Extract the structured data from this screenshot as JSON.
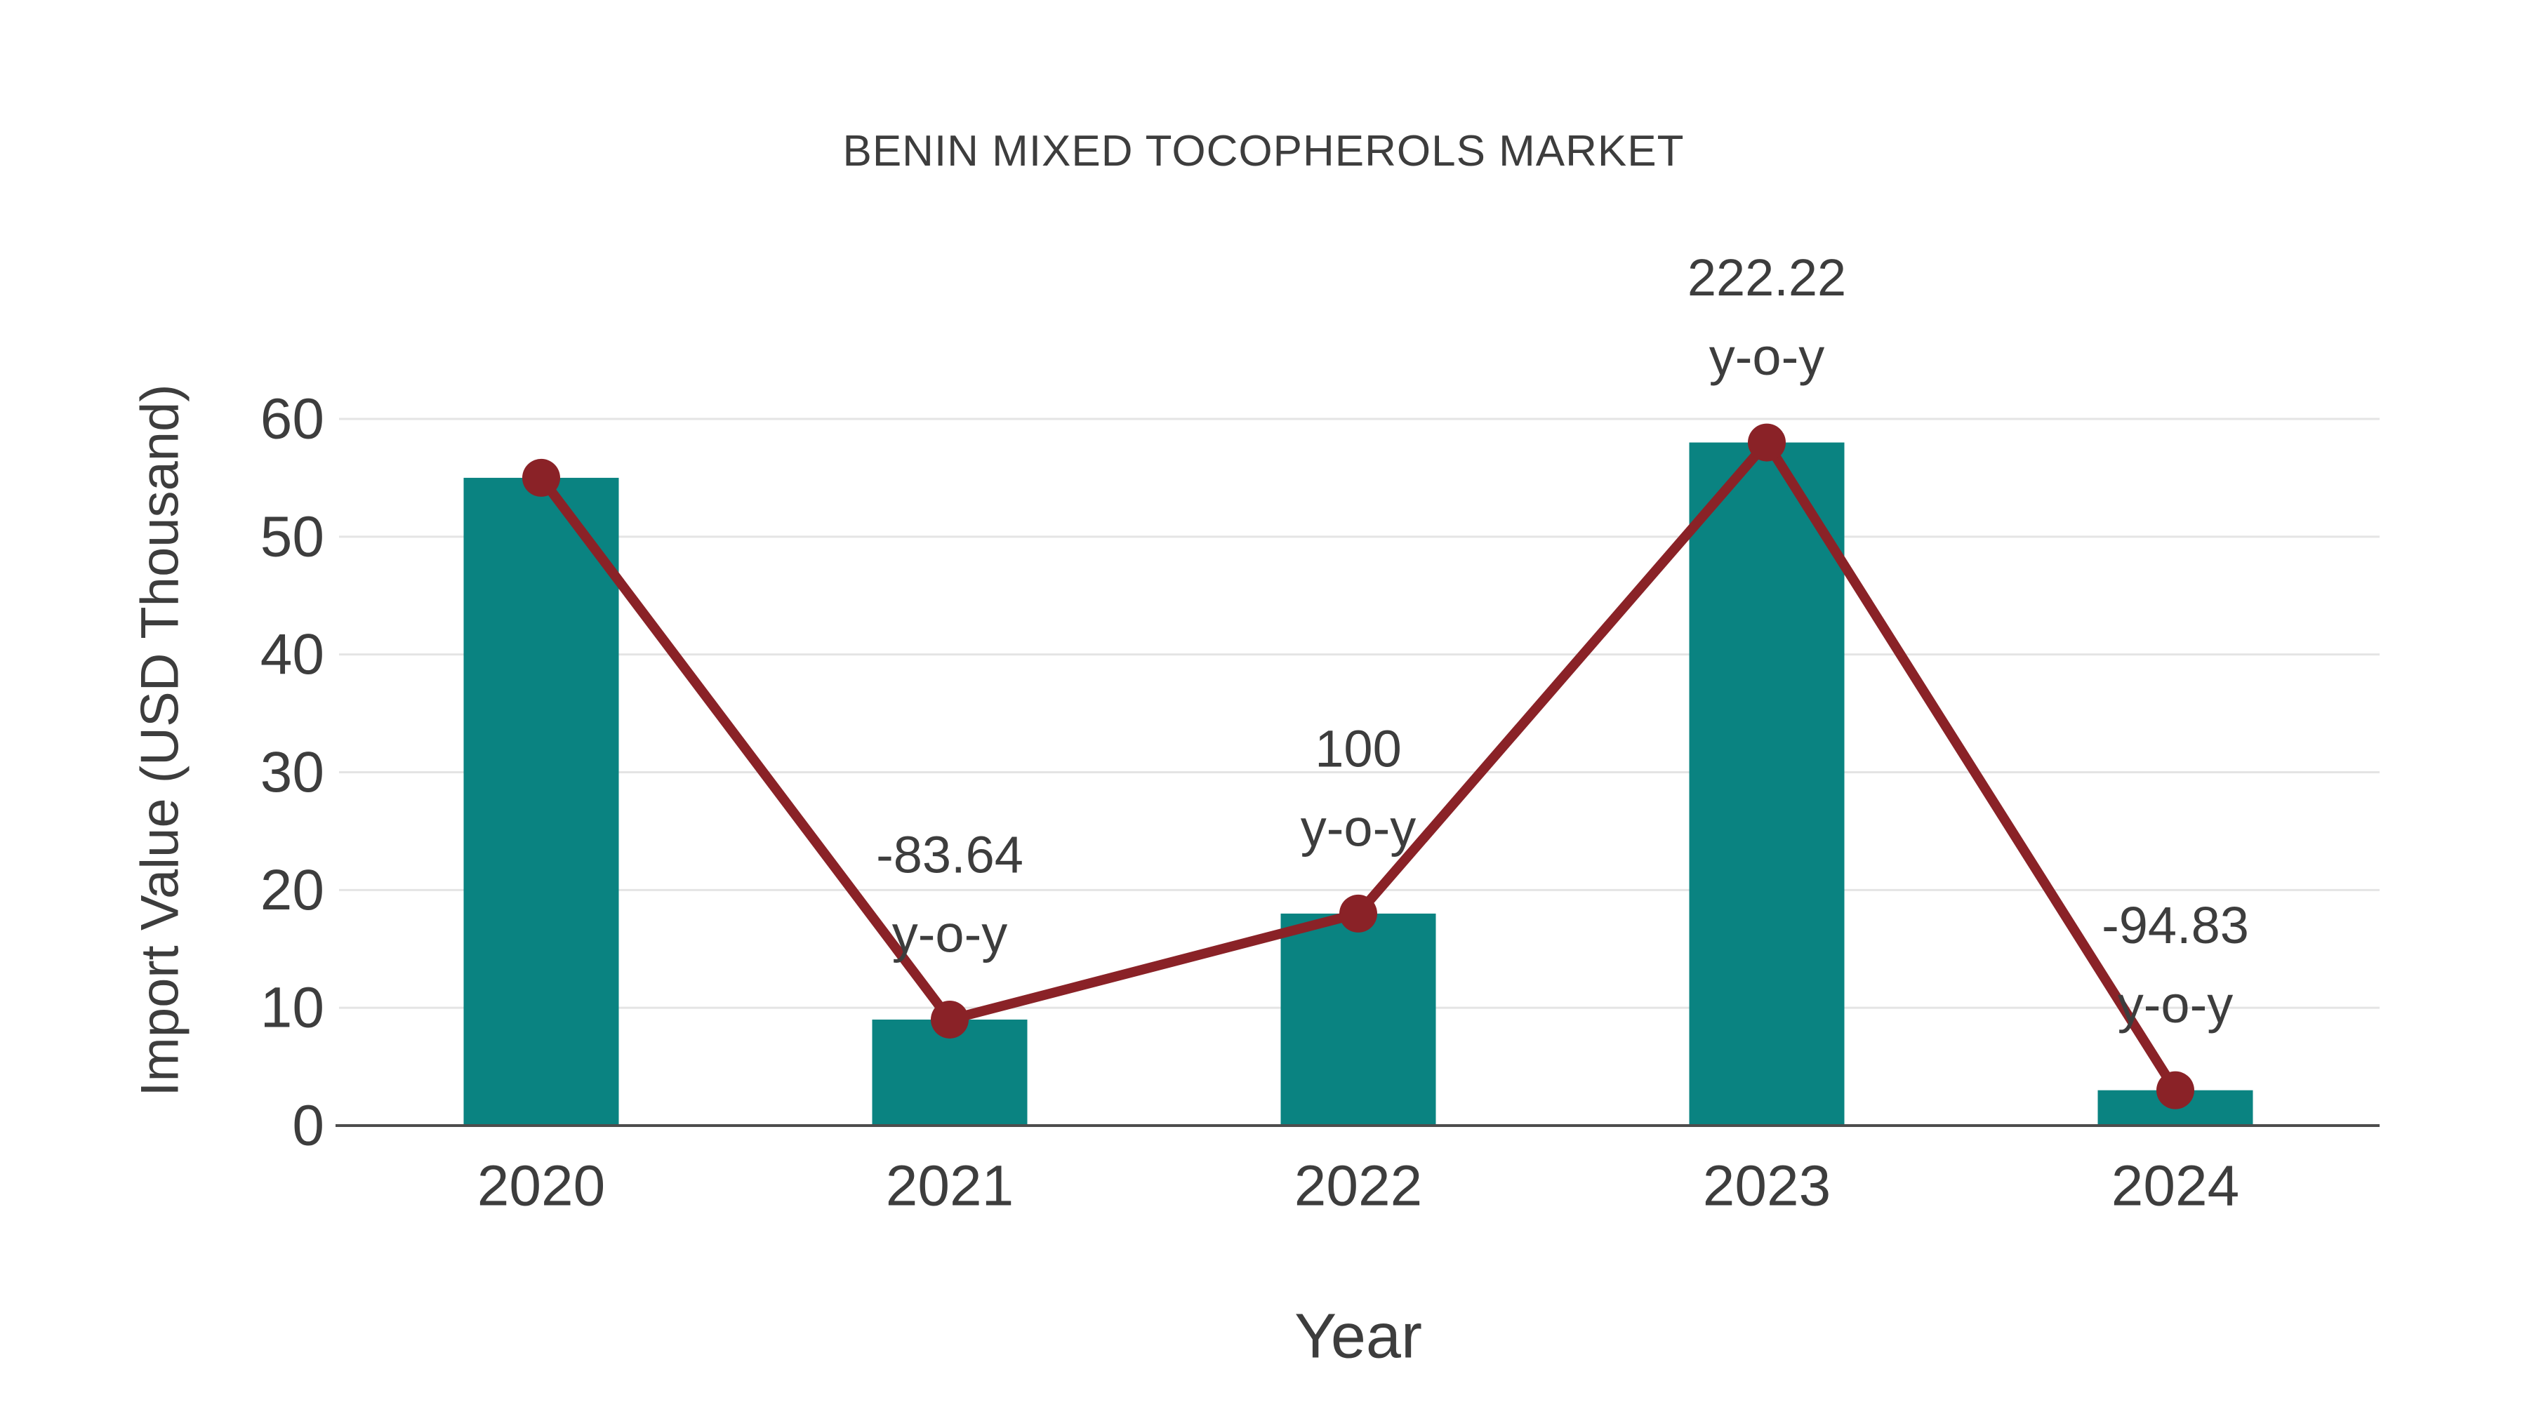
{
  "chart_data": {
    "type": "bar",
    "title": "BENIN MIXED TOCOPHEROLS MARKET",
    "xlabel": "Year",
    "ylabel": "Import Value (USD Thousand)",
    "categories": [
      "2020",
      "2021",
      "2022",
      "2023",
      "2024"
    ],
    "series": [
      {
        "name": "Import Value (USD Thousand)",
        "type": "bar",
        "values": [
          55,
          9,
          18,
          58,
          3
        ]
      },
      {
        "name": "Trend",
        "type": "line",
        "values": [
          55,
          9,
          18,
          58,
          3
        ]
      }
    ],
    "annotations": [
      {
        "category": "2021",
        "line1": "-83.64",
        "line2": "y-o-y"
      },
      {
        "category": "2022",
        "line1": "100",
        "line2": "y-o-y"
      },
      {
        "category": "2023",
        "line1": "222.22",
        "line2": "y-o-y"
      },
      {
        "category": "2024",
        "line1": "-94.83",
        "line2": "y-o-y"
      }
    ],
    "y_ticks": [
      0,
      10,
      20,
      30,
      40,
      50,
      60
    ],
    "ylim": [
      0,
      60
    ],
    "grid": true,
    "legend": false,
    "colors": {
      "bar": "#0a8381",
      "line": "#8a2227",
      "text": "#3d3d3d",
      "grid": "#e4e4e4",
      "axis": "#4d4d4d"
    }
  }
}
